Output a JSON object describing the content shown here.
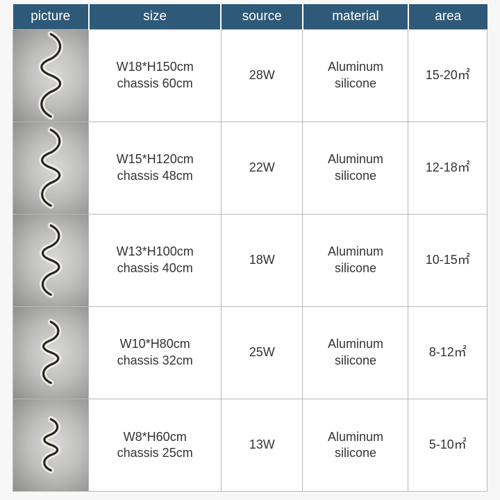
{
  "table": {
    "header_bg": "#2f5978",
    "header_fg": "#ffffff",
    "border_color": "#b7b7b7",
    "columns": [
      {
        "key": "picture",
        "label": "picture"
      },
      {
        "key": "size",
        "label": "size"
      },
      {
        "key": "source",
        "label": "source"
      },
      {
        "key": "material",
        "label": "material"
      },
      {
        "key": "area",
        "label": "area"
      }
    ],
    "rows": [
      {
        "size_line1": "W18*H150cm",
        "size_line2": "chassis 60cm",
        "source": "28W",
        "material_line1": "Aluminum",
        "material_line2": "silicone",
        "area": "15-20㎡",
        "lamp_scale": 1.0
      },
      {
        "size_line1": "W15*H120cm",
        "size_line2": "chassis 48cm",
        "source": "22W",
        "material_line1": "Aluminum",
        "material_line2": "silicone",
        "area": "12-18㎡",
        "lamp_scale": 0.92
      },
      {
        "size_line1": "W13*H100cm",
        "size_line2": "chassis 40cm",
        "source": "18W",
        "material_line1": "Aluminum",
        "material_line2": "silicone",
        "area": "10-15㎡",
        "lamp_scale": 0.84
      },
      {
        "size_line1": "W10*H80cm",
        "size_line2": "chassis 32cm",
        "source": "25W",
        "material_line1": "Aluminum",
        "material_line2": "silicone",
        "area": "8-12㎡",
        "lamp_scale": 0.74
      },
      {
        "size_line1": "W8*H60cm",
        "size_line2": "chassis 25cm",
        "source": "13W",
        "material_line1": "Aluminum",
        "material_line2": "silicone",
        "area": "5-10㎡",
        "lamp_scale": 0.62
      }
    ],
    "lamp_colors": {
      "glow": "#f4f2ea",
      "body": "#262523",
      "bg_inner": "#d9d9d8",
      "bg_outer": "#8e8e8d"
    }
  }
}
